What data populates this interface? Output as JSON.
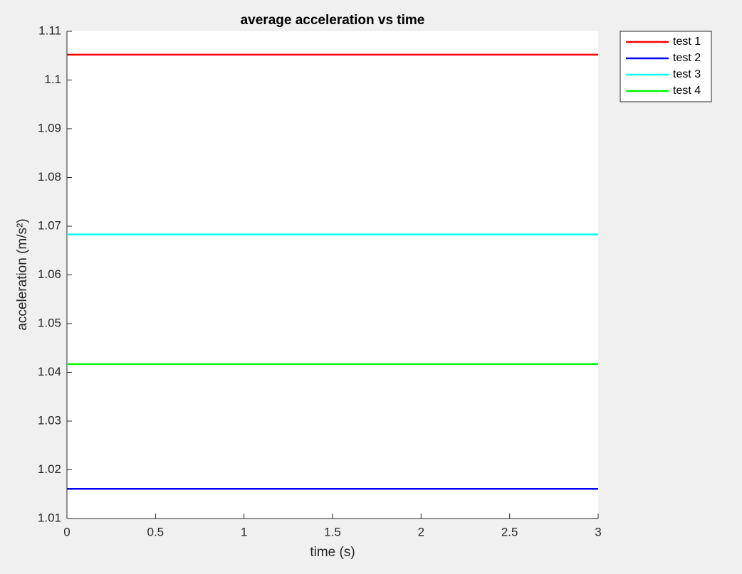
{
  "chart_data": {
    "type": "line",
    "title": "average acceleration vs time",
    "x_label": "time (s)",
    "y_label": "acceleration (m/s²)",
    "x": [
      0,
      3
    ],
    "series": [
      {
        "name": "test 1",
        "color": "#ff0000",
        "values": [
          1.1052,
          1.1052
        ]
      },
      {
        "name": "test 2",
        "color": "#0000ff",
        "values": [
          1.0161,
          1.0161
        ]
      },
      {
        "name": "test 3",
        "color": "#00ffff",
        "values": [
          1.0683,
          1.0683
        ]
      },
      {
        "name": "test 4",
        "color": "#00ff00",
        "values": [
          1.0417,
          1.0417
        ]
      }
    ],
    "xlim": [
      0,
      3
    ],
    "xticks": [
      0,
      0.5,
      1,
      1.5,
      2,
      2.5,
      3
    ],
    "ylim": [
      1.01,
      1.11
    ],
    "yticks": [
      1.01,
      1.02,
      1.03,
      1.04,
      1.05,
      1.06,
      1.07,
      1.08,
      1.09,
      1.1,
      1.11
    ],
    "grid": false,
    "legend": "northeastoutside"
  }
}
